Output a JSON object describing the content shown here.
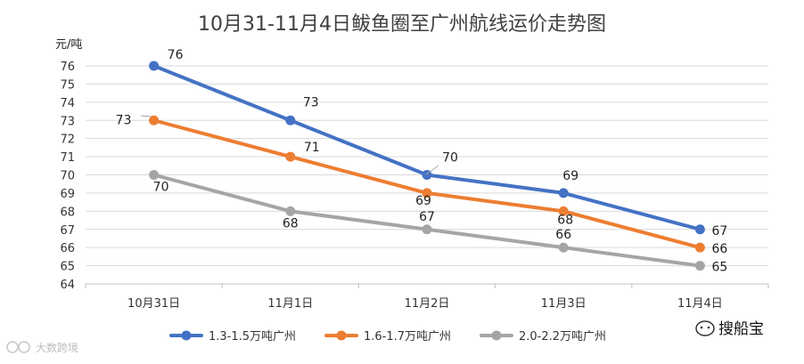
{
  "chart_data": {
    "type": "line",
    "title": "10月31-11月4日鲅鱼圈至广州航线运价走势图",
    "ylabel": "元/吨",
    "xlabel": "",
    "categories": [
      "10月31日",
      "11月1日",
      "11月2日",
      "11月3日",
      "11月4日"
    ],
    "ylim": [
      64,
      76
    ],
    "yticks": [
      64,
      65,
      66,
      67,
      68,
      69,
      70,
      71,
      72,
      73,
      74,
      75,
      76
    ],
    "grid": true,
    "legend_position": "bottom",
    "series": [
      {
        "name": "1.3-1.5万吨广州",
        "color": "#4472C4",
        "values": [
          76,
          73,
          70,
          69,
          67
        ]
      },
      {
        "name": "1.6-1.7万吨广州",
        "color": "#ED7D31",
        "values": [
          73,
          71,
          69,
          68,
          66
        ]
      },
      {
        "name": "2.0-2.2万吨广州",
        "color": "#A5A5A5",
        "values": [
          70,
          68,
          67,
          66,
          65
        ]
      }
    ]
  },
  "watermarks": {
    "left": "大数跨境",
    "right": "搜船宝"
  }
}
